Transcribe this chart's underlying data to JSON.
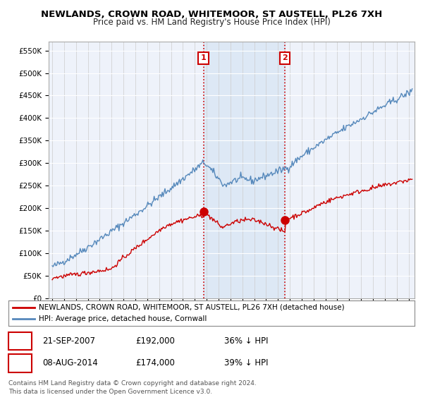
{
  "title": "NEWLANDS, CROWN ROAD, WHITEMOOR, ST AUSTELL, PL26 7XH",
  "subtitle": "Price paid vs. HM Land Registry's House Price Index (HPI)",
  "ylabel_ticks": [
    "£0",
    "£50K",
    "£100K",
    "£150K",
    "£200K",
    "£250K",
    "£300K",
    "£350K",
    "£400K",
    "£450K",
    "£500K",
    "£550K"
  ],
  "ytick_values": [
    0,
    50000,
    100000,
    150000,
    200000,
    250000,
    300000,
    350000,
    400000,
    450000,
    500000,
    550000
  ],
  "ylim": [
    0,
    570000
  ],
  "xlim_start": 1994.7,
  "xlim_end": 2025.5,
  "sale1_x": 2007.73,
  "sale1_y": 192000,
  "sale2_x": 2014.58,
  "sale2_y": 174000,
  "sale1_label": "1",
  "sale2_label": "2",
  "sale_color": "#cc0000",
  "hpi_color": "#5588bb",
  "shade_color": "#dde8f5",
  "legend_sale_text": "NEWLANDS, CROWN ROAD, WHITEMOOR, ST AUSTELL, PL26 7XH (detached house)",
  "legend_hpi_text": "HPI: Average price, detached house, Cornwall",
  "annotation1_date": "21-SEP-2007",
  "annotation1_price": "£192,000",
  "annotation1_hpi": "36% ↓ HPI",
  "annotation2_date": "08-AUG-2014",
  "annotation2_price": "£174,000",
  "annotation2_hpi": "39% ↓ HPI",
  "footnote1": "Contains HM Land Registry data © Crown copyright and database right 2024.",
  "footnote2": "This data is licensed under the Open Government Licence v3.0.",
  "background_color": "#ffffff",
  "plot_bg_color": "#eef2fa"
}
